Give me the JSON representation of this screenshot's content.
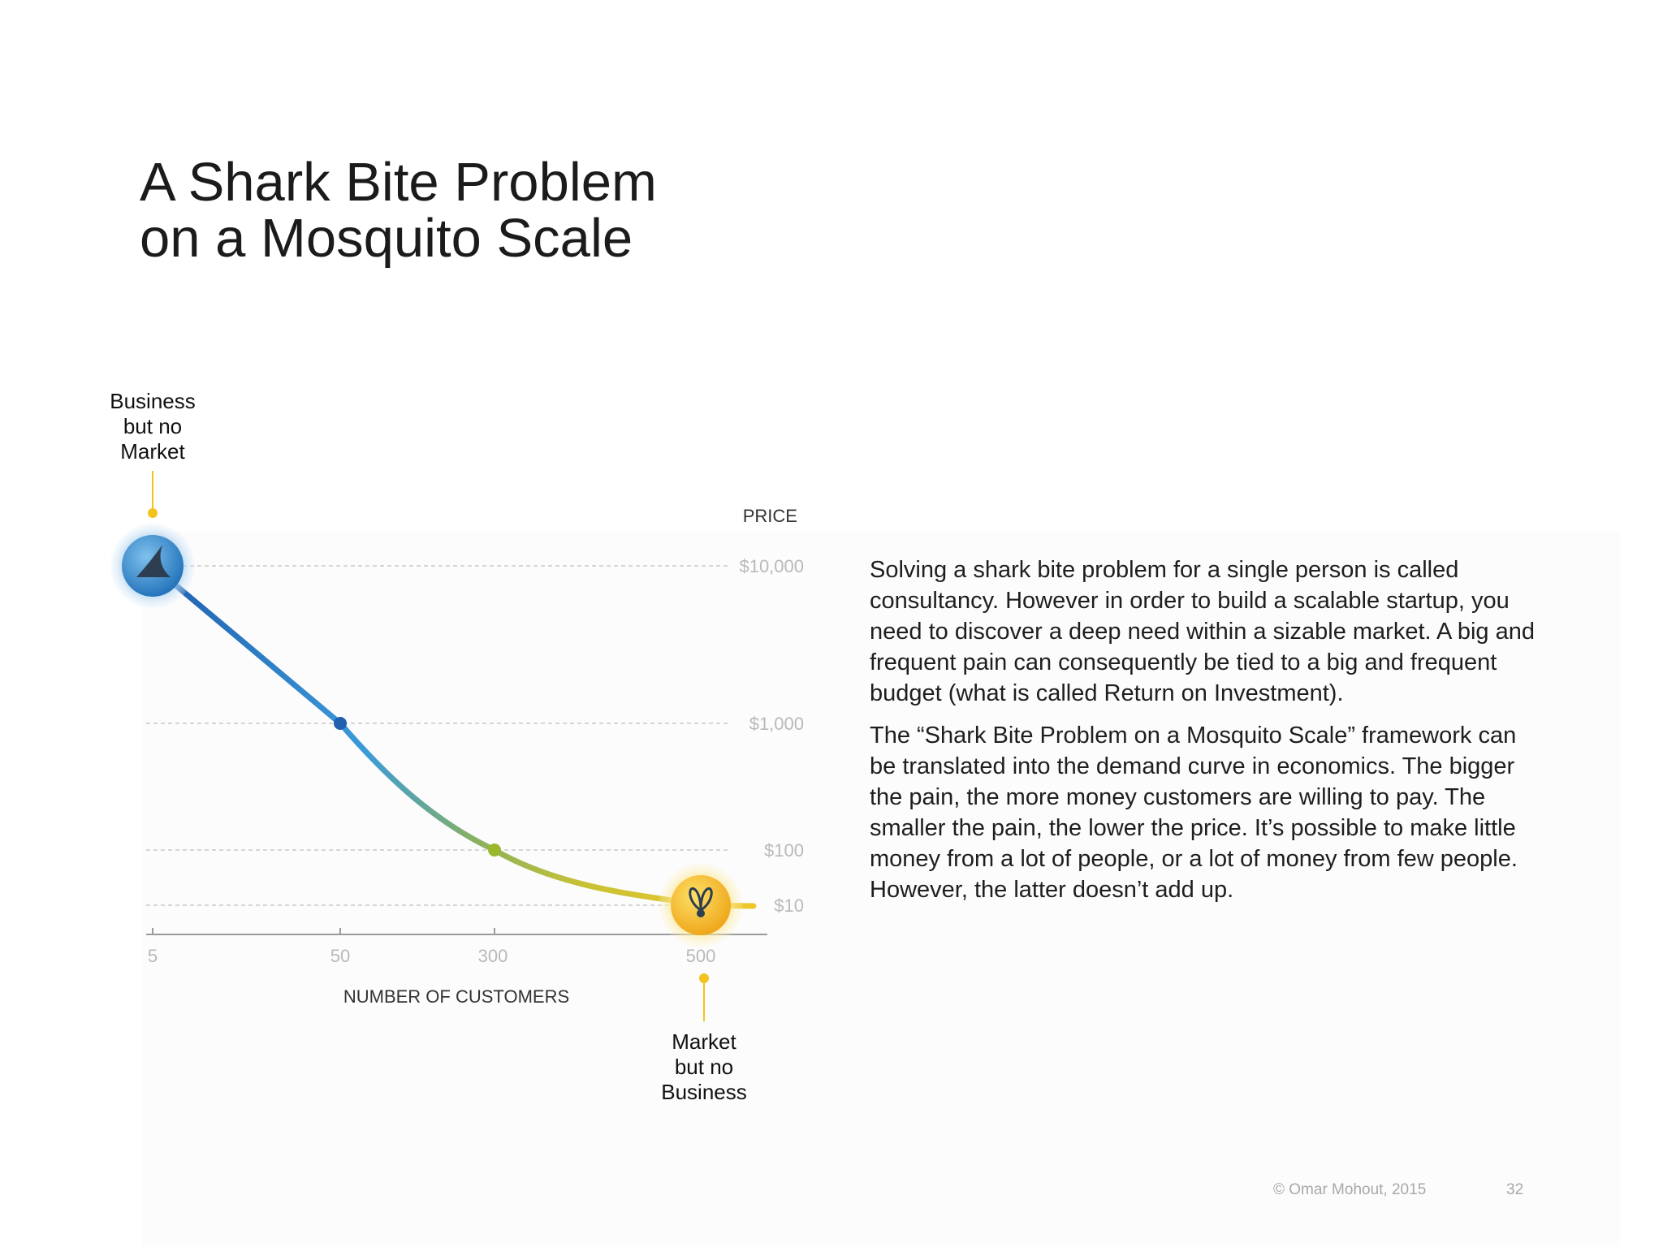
{
  "slide": {
    "title_line1": "A Shark Bite Problem",
    "title_line2": "on a Mosquito Scale",
    "paragraphs": [
      "Solving a shark bite problem for a single person is called consultancy. However in order to build a scalable startup, you need  to discover a deep need within a sizable market. A big and frequent pain can consequently be tied to a big and frequent budget (what is called Return on Investment).",
      "The “Shark Bite Problem on a Mosquito Scale” framework can be translated into the demand curve in economics. The bigger the pain, the more money customers are willing to pay. The smaller the pain, the lower the price. It’s possible to make little money from a lot of people, or a lot of money from few people. However, the latter doesn’t add up."
    ],
    "copyright": "© Omar Mohout, 2015",
    "page_number": "32"
  },
  "chart_data": {
    "type": "line",
    "title": "",
    "xlabel": "NUMBER OF CUSTOMERS",
    "ylabel": "PRICE",
    "x_ticks": [
      "5",
      "50",
      "300",
      "500"
    ],
    "y_ticks": [
      "$10,000",
      "$1,000",
      "$100",
      "$10"
    ],
    "series": [
      {
        "name": "demand curve",
        "points": [
          {
            "x": "5",
            "y": 10000,
            "marker": "shark"
          },
          {
            "x": "50",
            "y": 1000,
            "marker": "dot"
          },
          {
            "x": "300",
            "y": 100,
            "marker": "dot"
          },
          {
            "x": "500",
            "y": 10,
            "marker": "mosquito"
          }
        ]
      }
    ],
    "annotations": [
      {
        "text_lines": [
          "Business",
          "but no",
          "Market"
        ],
        "point": "5"
      },
      {
        "text_lines": [
          "Market",
          "but no",
          "Business"
        ],
        "point": "500"
      }
    ],
    "colors": {
      "blue_dark": "#1f5fae",
      "blue": "#3a9ad9",
      "green": "#9ab82c",
      "yellow": "#efc72a",
      "annotation_yellow": "#f2c31c",
      "grid": "#c9c9c9",
      "tick_text": "#b9b9b9"
    },
    "grid": true
  }
}
